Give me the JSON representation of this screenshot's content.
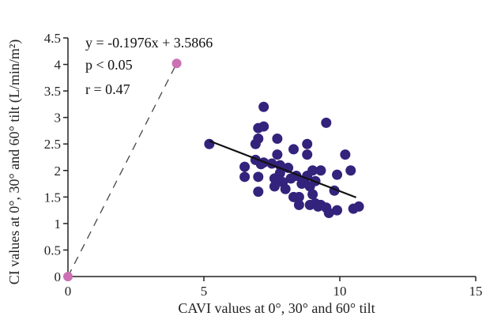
{
  "chart_data": {
    "type": "scatter",
    "xlabel": "CAVI values at 0°, 30° and 60° tilt",
    "ylabel": "CI values at 0°, 30° and 60° tilt (L/min/m²)",
    "xlim": [
      0,
      15
    ],
    "ylim": [
      0,
      4.5
    ],
    "x_ticks": [
      "0",
      "5",
      "10",
      "15"
    ],
    "y_ticks": [
      "0",
      "0.5",
      "1",
      "1.5",
      "2",
      "2.5",
      "3",
      "3.5",
      "4",
      "4.5"
    ],
    "grid": false,
    "annotations": [
      "y = -0.1976x + 3.5866",
      "p < 0.05",
      "r = 0.47"
    ],
    "colors": {
      "points": "#33237c",
      "highlight": "#cc70b4",
      "line": "#111111"
    },
    "series": [
      {
        "values": [
          [
            5.2,
            2.5
          ],
          [
            6.5,
            2.07
          ],
          [
            6.5,
            1.88
          ],
          [
            6.9,
            2.5
          ],
          [
            6.9,
            2.2
          ],
          [
            7.0,
            2.8
          ],
          [
            7.0,
            2.6
          ],
          [
            7.1,
            2.12
          ],
          [
            7.0,
            1.88
          ],
          [
            7.0,
            1.6
          ],
          [
            7.2,
            2.83
          ],
          [
            7.2,
            3.2
          ],
          [
            7.2,
            2.15
          ],
          [
            7.5,
            2.13
          ],
          [
            7.6,
            1.85
          ],
          [
            7.6,
            1.7
          ],
          [
            7.7,
            2.6
          ],
          [
            7.7,
            2.3
          ],
          [
            7.8,
            2.1
          ],
          [
            7.8,
            1.95
          ],
          [
            7.9,
            1.78
          ],
          [
            8.0,
            1.65
          ],
          [
            8.1,
            2.05
          ],
          [
            8.2,
            1.85
          ],
          [
            8.3,
            1.5
          ],
          [
            8.3,
            2.4
          ],
          [
            8.4,
            1.9
          ],
          [
            8.5,
            1.5
          ],
          [
            8.5,
            1.35
          ],
          [
            8.6,
            1.75
          ],
          [
            8.7,
            1.82
          ],
          [
            8.8,
            2.5
          ],
          [
            8.8,
            2.3
          ],
          [
            8.8,
            1.9
          ],
          [
            8.9,
            1.7
          ],
          [
            8.9,
            1.35
          ],
          [
            9.0,
            2.0
          ],
          [
            9.0,
            1.55
          ],
          [
            9.1,
            1.8
          ],
          [
            9.1,
            1.38
          ],
          [
            9.2,
            1.32
          ],
          [
            9.3,
            2.0
          ],
          [
            9.3,
            1.35
          ],
          [
            9.5,
            1.3
          ],
          [
            9.5,
            2.9
          ],
          [
            9.6,
            1.2
          ],
          [
            9.8,
            1.62
          ],
          [
            9.9,
            1.25
          ],
          [
            9.9,
            1.92
          ],
          [
            10.2,
            2.3
          ],
          [
            10.4,
            2.0
          ],
          [
            10.5,
            1.28
          ],
          [
            10.7,
            1.32
          ]
        ]
      },
      {
        "values": [
          [
            0,
            0
          ],
          [
            4.0,
            4.02
          ]
        ]
      }
    ],
    "fit_line": {
      "slope": -0.1976,
      "intercept": 3.5866,
      "x_range": [
        5.2,
        10.6
      ]
    },
    "reference_line": {
      "from": [
        0,
        0
      ],
      "to": [
        4.0,
        4.02
      ],
      "style": "dashed"
    }
  }
}
